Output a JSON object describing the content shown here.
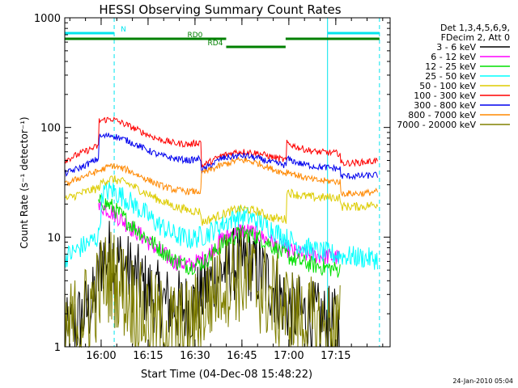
{
  "chart_data": {
    "type": "line",
    "title": "HESSI Observing Summary Count Rates",
    "xlabel": "Start Time (04-Dec-08 15:48:22)",
    "ylabel": "Count Rate (s⁻¹ detector⁻¹)",
    "y_scale": "log",
    "ylim": [
      1,
      1000
    ],
    "xlim_minutes": [
      0,
      104
    ],
    "x_tick_labels": [
      "16:00",
      "16:15",
      "16:30",
      "16:45",
      "17:00",
      "17:15"
    ],
    "x_tick_minutes": [
      11.63,
      26.63,
      41.63,
      56.63,
      71.63,
      86.63
    ],
    "y_tick_labels": [
      "1",
      "10",
      "100",
      "1000"
    ],
    "y_tick_values": [
      1,
      10,
      100,
      1000
    ],
    "grid": false,
    "legend_position": "right",
    "legend_header": [
      "Det 1,3,4,5,6,9,",
      "FDecim 2, Att 0"
    ],
    "timestamp": "24-Jan-2010 05:04",
    "vertical_markers": [
      {
        "x_minutes": 15.8,
        "color": "#00e5ee",
        "style": "dashed"
      },
      {
        "x_minutes": 84.0,
        "color": "#00e5ee",
        "style": "solid"
      },
      {
        "x_minutes": 100.6,
        "color": "#00e5ee",
        "style": "dashed"
      }
    ],
    "flag_bars": [
      {
        "label": "N",
        "row": 0,
        "color": "#00e5ee",
        "segments": [
          [
            0,
            15.8
          ],
          [
            84.0,
            100.6
          ]
        ]
      },
      {
        "label": "RD0",
        "row": 1,
        "color": "#008000",
        "segments": [
          [
            0,
            51.6
          ],
          [
            70.6,
            100.6
          ]
        ]
      },
      {
        "label": "RD4",
        "row": 2,
        "color": "#008000",
        "segments": [
          [
            51.6,
            70.6
          ]
        ]
      }
    ],
    "series": [
      {
        "name": "3 - 6 keV",
        "color": "#000000",
        "noise": 0.35,
        "x": [
          0,
          9,
          12,
          15,
          20,
          25,
          32,
          40,
          50,
          55,
          60,
          65,
          72,
          80,
          88
        ],
        "y": [
          1.2,
          2.5,
          6.5,
          7.0,
          5.0,
          3.5,
          2.5,
          2.2,
          5.0,
          5.8,
          5.6,
          4.0,
          2.2,
          1.8,
          1.5
        ]
      },
      {
        "name": "6 - 12 keV",
        "color": "#ff00ff",
        "noise": 0.08,
        "x": [
          10.8,
          12,
          15,
          20,
          25,
          30,
          35,
          40,
          45,
          50,
          55,
          58,
          62,
          66,
          70,
          75,
          80,
          88
        ],
        "y": [
          18,
          19,
          17,
          13,
          10,
          7.5,
          6.0,
          5.5,
          6.5,
          9.5,
          11.5,
          11.5,
          10.5,
          9.0,
          8.0,
          7.0,
          6.8,
          6.5
        ]
      },
      {
        "name": "12 - 25 keV",
        "color": "#00e000",
        "noise": 0.08,
        "x": [
          10.8,
          12,
          15,
          20,
          25,
          30,
          35,
          40,
          45,
          50,
          55,
          58,
          62,
          66,
          70,
          75,
          80,
          88
        ],
        "y": [
          20,
          21,
          19,
          14,
          10.5,
          8.0,
          6.2,
          5.4,
          6.0,
          8.5,
          10.5,
          10.8,
          10.0,
          8.5,
          7.0,
          6.0,
          5.5,
          5.0
        ]
      },
      {
        "name": "25 - 50 keV",
        "color": "#00ffff",
        "noise": 0.1,
        "x": [
          0,
          5,
          10.8,
          12,
          15,
          20,
          25,
          30,
          35,
          40,
          45,
          50,
          55,
          58,
          62,
          66,
          70,
          75,
          80,
          88,
          95,
          100
        ],
        "y": [
          6.5,
          8.0,
          10.0,
          25,
          27,
          22,
          17,
          13,
          10.5,
          9.5,
          10.5,
          13,
          15.5,
          15.5,
          14,
          12,
          10,
          8.5,
          7.5,
          6.8,
          6.5,
          6.3
        ]
      },
      {
        "name": "50 - 100 keV",
        "color": "#ddcc00",
        "noise": 0.04,
        "x": [
          0,
          5,
          10.8,
          12,
          15,
          20,
          25,
          30,
          35,
          40,
          43.5,
          43.6,
          50,
          55,
          58,
          62,
          66,
          70.9,
          71,
          75,
          80,
          88,
          88.2,
          95,
          100
        ],
        "y": [
          22,
          25,
          28,
          32,
          34,
          31,
          26,
          22,
          19,
          17.5,
          17,
          13.5,
          16,
          18,
          18,
          17,
          15,
          14.5,
          26,
          24,
          23,
          23,
          19,
          19,
          20
        ]
      },
      {
        "name": "100 - 300 keV",
        "color": "#ff0000",
        "noise": 0.03,
        "x": [
          0,
          5,
          10.8,
          11,
          15,
          20,
          25,
          30,
          35,
          40,
          43.5,
          43.6,
          50,
          55,
          58,
          62,
          66,
          70.9,
          71,
          75,
          80,
          88,
          88.2,
          95,
          100
        ],
        "y": [
          50,
          58,
          68,
          115,
          120,
          105,
          90,
          78,
          72,
          70,
          74,
          44,
          55,
          60,
          60,
          58,
          54,
          50,
          72,
          65,
          60,
          58,
          47,
          48,
          50
        ]
      },
      {
        "name": "300 - 800 keV",
        "color": "#0000ee",
        "noise": 0.03,
        "x": [
          0,
          5,
          10.8,
          11,
          15,
          20,
          25,
          30,
          35,
          40,
          43.5,
          43.6,
          50,
          55,
          58,
          62,
          66,
          70.9,
          71,
          75,
          80,
          88,
          88.2,
          95,
          100
        ],
        "y": [
          38,
          43,
          52,
          82,
          85,
          76,
          65,
          56,
          52,
          50,
          52,
          40,
          52,
          55,
          55,
          52,
          48,
          45,
          52,
          47,
          44,
          42,
          36,
          36,
          37
        ]
      },
      {
        "name": "800 - 7000 keV",
        "color": "#ff8800",
        "noise": 0.03,
        "x": [
          0,
          5,
          10.8,
          15,
          20,
          25,
          30,
          35,
          40,
          43.5,
          43.6,
          50,
          55,
          58,
          62,
          66,
          70.9,
          71,
          75,
          80,
          88,
          88.2,
          95,
          100
        ],
        "y": [
          30,
          35,
          40,
          45,
          41,
          35,
          30,
          27,
          26,
          26,
          38,
          45,
          50,
          50,
          47,
          42,
          38,
          40,
          36,
          33,
          32,
          25,
          25,
          26
        ]
      },
      {
        "name": "7000 - 20000 keV",
        "color": "#808000",
        "noise": 0.45,
        "x": [
          0,
          9,
          12,
          15,
          20,
          25,
          32,
          40,
          45,
          50,
          55,
          60,
          65,
          72,
          80,
          88
        ],
        "y": [
          1.3,
          2.5,
          4.0,
          4.5,
          3.0,
          2.0,
          1.5,
          1.5,
          2.5,
          4.0,
          4.5,
          4.0,
          3.0,
          2.0,
          1.5,
          1.4
        ]
      }
    ]
  }
}
